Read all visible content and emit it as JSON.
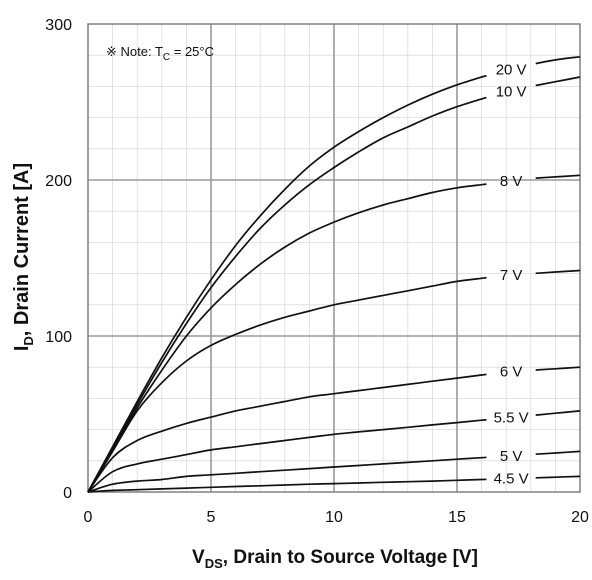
{
  "chart_data": {
    "type": "line",
    "note": {
      "prefix": "※ Note: T",
      "subscript": "C",
      "suffix": " = 25°C"
    },
    "xlabel": {
      "main": "V",
      "sub": "DS",
      "rest": ", Drain to Source Voltage [V]"
    },
    "ylabel": {
      "main": "I",
      "sub": "D",
      "rest": ", Drain Current [A]"
    },
    "xlim": [
      0,
      20
    ],
    "ylim": [
      0,
      300
    ],
    "xticks": [
      "0",
      "5",
      "10",
      "15",
      "20"
    ],
    "yticks": [
      "0",
      "100",
      "200",
      "300"
    ],
    "grid": true,
    "x": [
      0,
      1,
      2,
      3,
      4,
      5,
      6,
      7,
      8,
      9,
      10,
      11,
      12,
      13,
      14,
      15,
      16,
      17,
      18,
      19,
      20
    ],
    "series": [
      {
        "name": "20 V",
        "values": [
          0,
          29,
          58,
          86,
          112,
          136,
          158,
          177,
          194,
          209,
          221,
          231,
          240,
          248,
          255,
          261,
          266,
          270,
          274,
          277,
          279
        ]
      },
      {
        "name": "10 V",
        "values": [
          0,
          28,
          56,
          83,
          108,
          131,
          151,
          169,
          184,
          197,
          208,
          218,
          227,
          234,
          241,
          247,
          252,
          256,
          260,
          263,
          266
        ]
      },
      {
        "name": "8 V",
        "values": [
          0,
          27,
          54,
          78,
          100,
          118,
          133,
          146,
          157,
          166,
          173,
          179,
          184,
          188,
          192,
          195,
          197,
          199,
          201,
          202,
          203
        ]
      },
      {
        "name": "7 V",
        "values": [
          0,
          26,
          52,
          70,
          84,
          94,
          101,
          107,
          112,
          116,
          120,
          123,
          126,
          129,
          132,
          135,
          137,
          139,
          140,
          141,
          142
        ]
      },
      {
        "name": "6 V",
        "values": [
          0,
          22,
          33,
          39,
          44,
          48,
          52,
          55,
          58,
          61,
          63,
          65,
          67,
          69,
          71,
          73,
          75,
          77,
          78,
          79,
          80
        ]
      },
      {
        "name": "5.5 V",
        "values": [
          0,
          13,
          18,
          21,
          24,
          27,
          29,
          31,
          33,
          35,
          37,
          38.5,
          40,
          41.5,
          43,
          44.5,
          46,
          47.5,
          49,
          50.5,
          52
        ]
      },
      {
        "name": "5 V",
        "values": [
          0,
          5,
          7,
          8,
          10,
          11,
          12,
          13,
          14,
          15,
          16,
          17,
          18,
          19,
          20,
          21,
          22,
          23,
          24,
          25,
          26
        ]
      },
      {
        "name": "4.5 V",
        "values": [
          0,
          1,
          1.5,
          2,
          2.5,
          3,
          3.5,
          4,
          4.5,
          5,
          5.4,
          5.8,
          6.2,
          6.6,
          7,
          7.5,
          8,
          8.5,
          9,
          9.5,
          10
        ]
      }
    ],
    "colors": {
      "curve": "#111111",
      "major_grid": "#9a9a9a",
      "minor_grid": "#dcdcdc"
    }
  }
}
